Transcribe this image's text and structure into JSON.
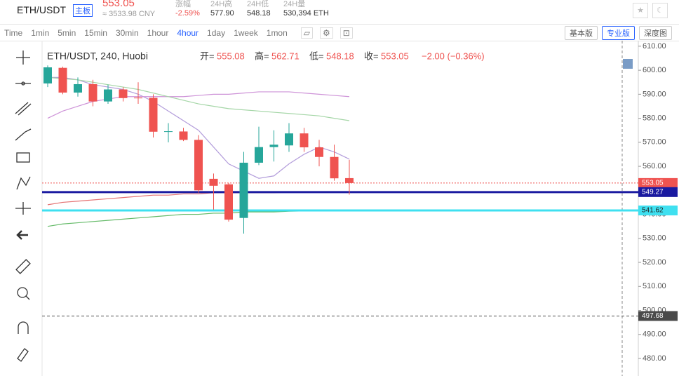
{
  "header": {
    "pair": "ETH/USDT",
    "badge": "主板",
    "price": "553.05",
    "cny": "≈ 3533.98 CNY",
    "stats": [
      {
        "label": "涨幅",
        "value": "-2.59%"
      },
      {
        "label": "24H高",
        "value": "577.90"
      },
      {
        "label": "24H低",
        "value": "548.18"
      },
      {
        "label": "24H量",
        "value": "530,394 ETH"
      }
    ]
  },
  "toolbar": {
    "intervals": [
      "Time",
      "1min",
      "5min",
      "15min",
      "30min",
      "1hour",
      "4hour",
      "1day",
      "1week",
      "1mon"
    ],
    "active": "4hour",
    "views": [
      "基本版",
      "专业版",
      "深度图"
    ],
    "active_view": "专业版"
  },
  "chart_data": {
    "type": "candlestick",
    "title": "ETH/USDT, 240, Huobi",
    "legend": [
      {
        "label": "开=",
        "value": "555.08"
      },
      {
        "label": "高=",
        "value": "562.71"
      },
      {
        "label": "低=",
        "value": "548.18"
      },
      {
        "label": "收=",
        "value": "553.05"
      }
    ],
    "change": "−2.00 (−0.36%)",
    "open": [
      594.5,
      601,
      590.7,
      594.2,
      587,
      592,
      588.6,
      588.5,
      574.3,
      574.5,
      571,
      554.8,
      552.5,
      538.5,
      561.5,
      568,
      568.7,
      573.7,
      567.9,
      563.9,
      555.08
    ],
    "high": [
      602,
      601.5,
      597,
      596,
      594,
      593,
      595,
      590,
      578,
      576,
      573,
      557,
      553,
      566,
      576.5,
      575,
      578,
      576,
      571,
      569,
      562.71
    ],
    "low": [
      593,
      590,
      589,
      585,
      586,
      587,
      586,
      572,
      570,
      570.5,
      549,
      542,
      537,
      532,
      560.5,
      562,
      566,
      566,
      560,
      554,
      548.18
    ],
    "close": [
      601.2,
      590.7,
      594.2,
      587,
      592,
      588.4,
      588.4,
      574.4,
      574.6,
      571,
      550,
      551.9,
      537.8,
      561.5,
      568,
      569,
      573.7,
      567.9,
      563.9,
      555,
      553.05
    ],
    "up_color": "#26a69a",
    "down_color": "#ef5350",
    "lines": [
      {
        "color": "#b39ddb",
        "values": [
          597,
          597,
          596,
          594,
          593,
          592,
          590,
          587,
          583,
          579,
          575,
          568,
          561,
          558,
          555,
          556,
          561,
          565,
          568,
          566,
          563
        ]
      },
      {
        "color": "#ce93d8",
        "values": [
          580,
          583,
          585,
          587,
          588,
          589,
          589,
          589,
          589,
          589,
          589.5,
          590,
          590,
          590.5,
          591,
          591,
          591,
          590.5,
          590,
          589.5,
          589
        ]
      },
      {
        "color": "#a5d6a7",
        "values": [
          597,
          596.5,
          596,
          595,
          594,
          593,
          592,
          590.5,
          589,
          587.5,
          586,
          585,
          584,
          583.5,
          583,
          582.5,
          582,
          581.5,
          581,
          580,
          579
        ]
      },
      {
        "color": "#e57373",
        "values": [
          544,
          545,
          545.5,
          546,
          546.5,
          547,
          547.5,
          548,
          548,
          548.5,
          548.5,
          549,
          549,
          549,
          549,
          549,
          549.2,
          549.2,
          549.3,
          549.3,
          549.27
        ]
      },
      {
        "color": "#66bb6a",
        "values": [
          535,
          536,
          536.5,
          537,
          537.5,
          538,
          538.5,
          539,
          539.5,
          540,
          540,
          540.5,
          540.5,
          541,
          541,
          541,
          541.3,
          541.4,
          541.5,
          541.6,
          541.62
        ]
      }
    ],
    "price_lines": [
      {
        "value": 553.05,
        "color": "#ef5350",
        "text_color": "#ffffff",
        "style": "dotted"
      },
      {
        "value": 549.27,
        "color": "#1a1aa0",
        "text_color": "#ffffff",
        "style": "solid"
      },
      {
        "value": 541.62,
        "color": "#3fe0f0",
        "text_color": "#222222",
        "style": "solid"
      },
      {
        "value": 497.68,
        "color": "#4a4a4a",
        "text_color": "#ffffff",
        "style": "dashed"
      }
    ],
    "ylim": [
      472.7,
      612.3
    ],
    "yticks": [
      {
        "value": 480,
        "label": "480.00"
      },
      {
        "value": 490,
        "label": "490.00"
      },
      {
        "value": 500,
        "label": "500.00"
      },
      {
        "value": 510,
        "label": "510.00"
      },
      {
        "value": 520,
        "label": "520.00"
      },
      {
        "value": 530,
        "label": "530.00"
      },
      {
        "value": 540,
        "label": "540.00"
      },
      {
        "value": 550,
        "label": "550.00"
      },
      {
        "value": 560,
        "label": "560.00"
      },
      {
        "value": 570,
        "label": "570.00"
      },
      {
        "value": 580,
        "label": "580.00"
      },
      {
        "value": 590,
        "label": "590.00"
      },
      {
        "value": 600,
        "label": "600.00"
      },
      {
        "value": 610,
        "label": "610.00"
      }
    ]
  }
}
